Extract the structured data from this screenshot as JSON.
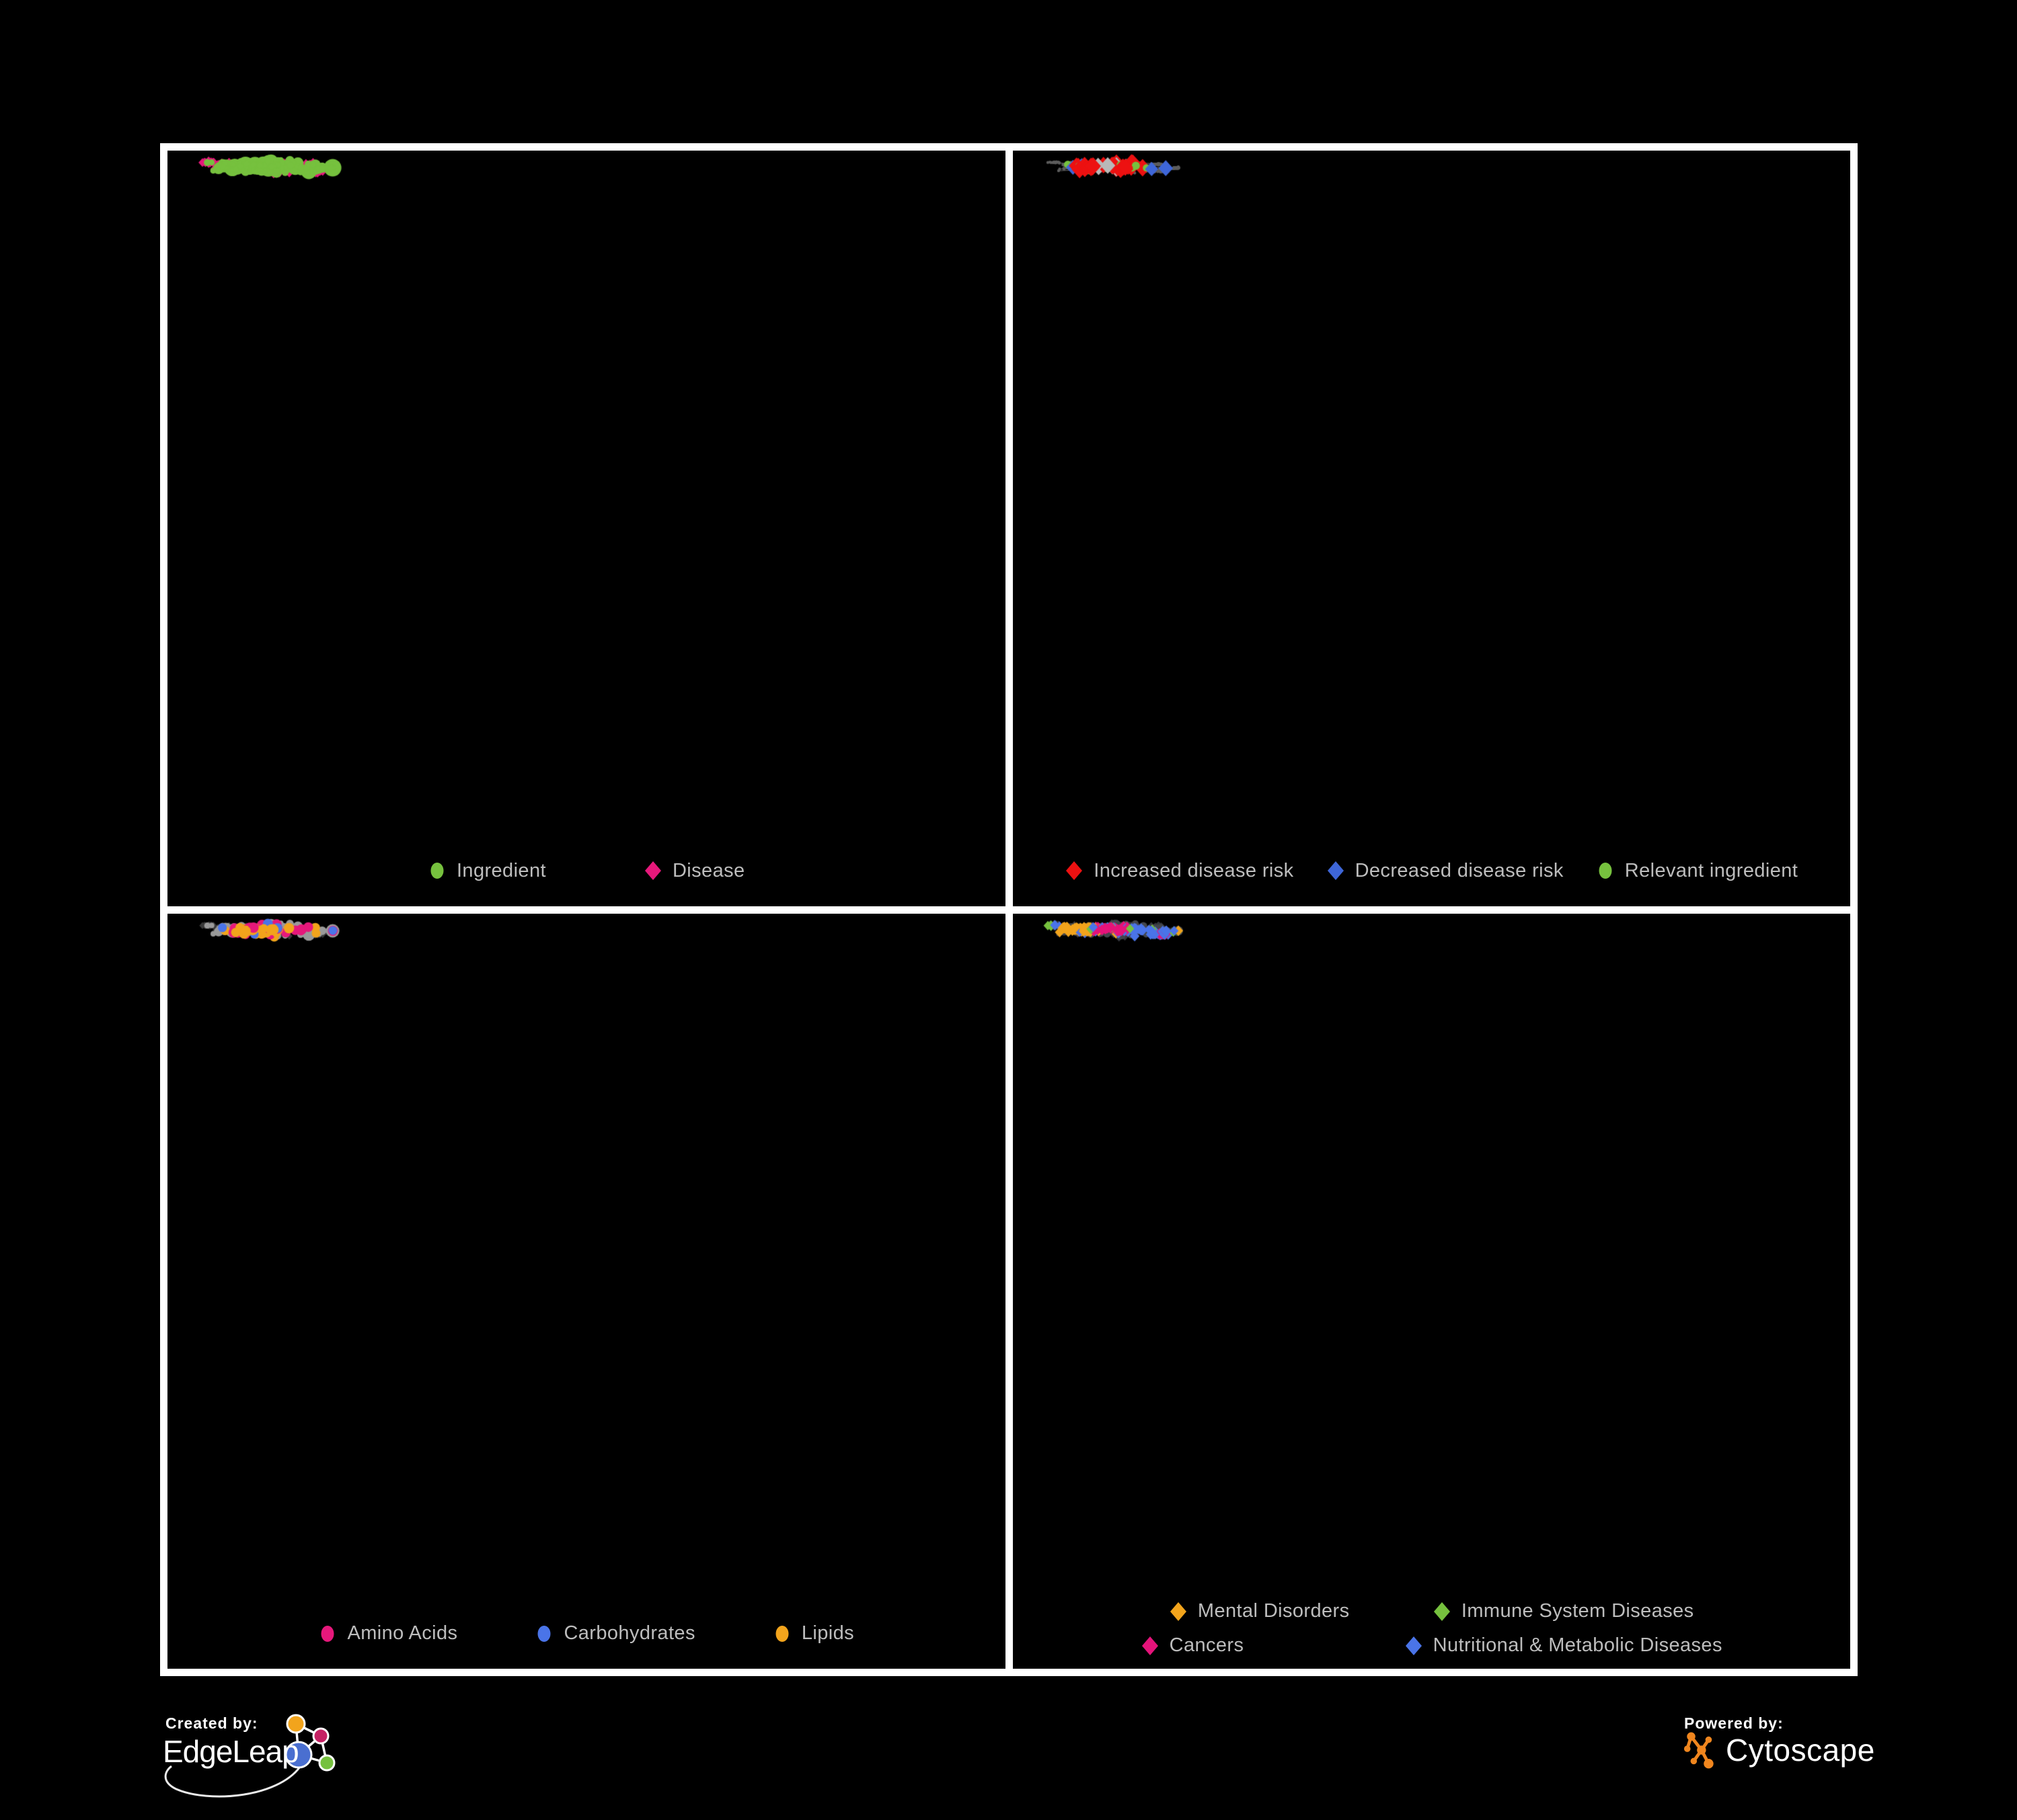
{
  "figure": {
    "background": "#000000",
    "panel_background": "#000000",
    "panel_border_color": "#ffffff",
    "legend_text_color": "#bdbdbd"
  },
  "panels": [
    {
      "id": "ingredient-disease",
      "legend_rows": [
        [
          {
            "shape": "circle",
            "color": "#76c13e",
            "label": "Ingredient"
          },
          {
            "shape": "diamond",
            "color": "#e6187b",
            "label": "Disease"
          }
        ]
      ],
      "style": {
        "seed": 11,
        "edge": {
          "color": "#6b6b6b",
          "width": 2.4,
          "opacity": 0.88
        },
        "ing": {
          "shape": "circle",
          "color": "#76c13e",
          "rBase": 3.6,
          "rDeg": 0.8,
          "rMax": 13
        },
        "dis": {
          "shape": "diamond",
          "color": "#e6187b",
          "sBase": 5.6,
          "sDeg": 0.3,
          "sMax": 8.5
        },
        "overlays": []
      }
    },
    {
      "id": "disease-risk",
      "legend_rows": [
        [
          {
            "shape": "diamond",
            "color": "#ed1111",
            "label": "Increased disease risk"
          },
          {
            "shape": "diamond",
            "color": "#3e66d8",
            "label": "Decreased disease risk"
          },
          {
            "shape": "circle",
            "color": "#76c13e",
            "label": "Relevant ingredient"
          }
        ]
      ],
      "style": {
        "seed": 22,
        "edge": {
          "color": "#7a7a7a",
          "width": 1.1,
          "opacity": 0.8
        },
        "ing": {
          "shape": "circle",
          "color": "#5d5d5d",
          "rBase": 2.1,
          "rDeg": 0.08,
          "rMax": 3.2
        },
        "dis": {
          "shape": "circle",
          "color": "#5d5d5d",
          "sBase": 2.1,
          "sDeg": 0.08,
          "sMax": 3.2
        },
        "overlays": [
          {
            "type": "dis",
            "count": 20,
            "region": [
              0.2,
              0.25,
              0.6,
              0.6
            ],
            "shape": "diamond",
            "color": "#ed1111",
            "size": 11
          },
          {
            "type": "dis",
            "count": 3,
            "region": [
              0.48,
              0.68,
              0.68,
              0.85
            ],
            "shape": "diamond",
            "color": "#ed1111",
            "size": 11
          },
          {
            "type": "dis",
            "count": 3,
            "region": [
              0.6,
              0.28,
              0.75,
              0.5
            ],
            "shape": "diamond",
            "color": "#ed1111",
            "size": 11
          },
          {
            "type": "dis",
            "count": 2,
            "region": [
              0.33,
              0.12,
              0.5,
              0.25
            ],
            "shape": "diamond",
            "color": "#ed1111",
            "size": 11
          },
          {
            "type": "dis",
            "count": 6,
            "region": [
              0.18,
              0.3,
              0.55,
              0.62
            ],
            "shape": "diamond",
            "color": "#b9b9b9",
            "size": 10
          },
          {
            "type": "dis",
            "count": 3,
            "region": [
              0.14,
              0.36,
              0.28,
              0.55
            ],
            "shape": "diamond",
            "color": "#3e66d8",
            "size": 10
          },
          {
            "type": "dis",
            "count": 2,
            "region": [
              0.78,
              0.3,
              0.93,
              0.45
            ],
            "shape": "diamond",
            "color": "#3e66d8",
            "size": 11
          },
          {
            "type": "ing",
            "count": 18,
            "region": [
              0.18,
              0.22,
              0.58,
              0.62
            ],
            "shape": "circle",
            "color": "#76c13e",
            "size": 5.5
          },
          {
            "type": "ing",
            "count": 4,
            "region": [
              0.58,
              0.3,
              0.78,
              0.58
            ],
            "shape": "circle",
            "color": "#76c13e",
            "size": 5.5
          },
          {
            "type": "ing",
            "count": 3,
            "region": [
              0.08,
              0.5,
              0.25,
              0.72
            ],
            "shape": "circle",
            "color": "#76c13e",
            "size": 5
          }
        ]
      }
    },
    {
      "id": "macronutrients",
      "legend_rows": [
        [
          {
            "shape": "circle",
            "color": "#e6187b",
            "label": "Amino Acids"
          },
          {
            "shape": "circle",
            "color": "#4a74e8",
            "label": "Carbohydrates"
          },
          {
            "shape": "circle",
            "color": "#f2a41c",
            "label": "Lipids"
          }
        ]
      ],
      "style": {
        "seed": 33,
        "edge": {
          "color": "#a9a9a9",
          "width": 1.0,
          "opacity": 0.38
        },
        "ing": {
          "shape": "circle",
          "color": "#9a9a9a",
          "rBase": 3.4,
          "rDeg": 0.6,
          "rMax": 10
        },
        "dis": {
          "shape": "diamond",
          "color": "#3a3a3a",
          "sBase": 4.6,
          "sDeg": 0.1,
          "sMax": 6
        },
        "overlays": [
          {
            "type": "ing",
            "count": 34,
            "region": [
              0.3,
              0.2,
              0.6,
              0.5
            ],
            "shape": "circle",
            "color": "#f2a41c",
            "size": 7
          },
          {
            "type": "ing",
            "count": 10,
            "region": [
              0.38,
              0.5,
              0.66,
              0.68
            ],
            "shape": "circle",
            "color": "#f2a41c",
            "size": 7
          },
          {
            "type": "ing",
            "count": 8,
            "region": null,
            "shape": "circle",
            "color": "#f2a41c",
            "size": 6.5
          },
          {
            "type": "ing",
            "count": 20,
            "region": null,
            "shape": "circle",
            "color": "#e6187b",
            "size": 7
          },
          {
            "type": "ing",
            "count": 8,
            "region": [
              0.35,
              0.16,
              0.56,
              0.4
            ],
            "shape": "circle",
            "color": "#4a74e8",
            "size": 7
          },
          {
            "type": "ing",
            "count": 5,
            "region": null,
            "shape": "circle",
            "color": "#4a74e8",
            "size": 6.5
          }
        ]
      }
    },
    {
      "id": "disease-categories",
      "legend_rows": [
        [
          {
            "shape": "diamond",
            "color": "#f2a41c",
            "label": "Mental Disorders"
          },
          {
            "shape": "diamond",
            "color": "#76c13e",
            "label": "Immune System Diseases"
          }
        ],
        [
          {
            "shape": "diamond",
            "color": "#e5137a",
            "label": "Cancers"
          },
          {
            "shape": "diamond",
            "color": "#4a74e8",
            "label": "Nutritional & Metabolic Diseases"
          }
        ]
      ],
      "style": {
        "seed": 44,
        "edge": {
          "color": "#9b9b9b",
          "width": 0.9,
          "opacity": 0.35
        },
        "ing": {
          "shape": "circle",
          "color": "#43464c",
          "rBase": 3.2,
          "rDeg": 0.45,
          "rMax": 7
        },
        "dis": {
          "shape": "diamond",
          "color": "#35383e",
          "sBase": 6,
          "sDeg": 0.15,
          "sMax": 8
        },
        "overlays": [
          {
            "type": "dis",
            "count": 75,
            "region": [
              0.05,
              0.35,
              0.33,
              0.66
            ],
            "shape": "diamond",
            "color": "#f2a41c",
            "size": 7
          },
          {
            "type": "dis",
            "count": 8,
            "region": [
              0.3,
              0.05,
              0.55,
              0.25
            ],
            "shape": "diamond",
            "color": "#f2a41c",
            "size": 6.5
          },
          {
            "type": "dis",
            "count": 6,
            "region": null,
            "shape": "diamond",
            "color": "#f2a41c",
            "size": 6.5
          },
          {
            "type": "dis",
            "count": 45,
            "region": [
              0.35,
              0.42,
              0.62,
              0.68
            ],
            "shape": "diamond",
            "color": "#e5137a",
            "size": 7
          },
          {
            "type": "dis",
            "count": 8,
            "region": [
              0.8,
              0.2,
              0.95,
              0.33
            ],
            "shape": "diamond",
            "color": "#e5137a",
            "size": 7
          },
          {
            "type": "dis",
            "count": 6,
            "region": null,
            "shape": "diamond",
            "color": "#e5137a",
            "size": 6.5
          },
          {
            "type": "dis",
            "count": 26,
            "region": [
              0.56,
              0.3,
              0.92,
              0.6
            ],
            "shape": "diamond",
            "color": "#4a74e8",
            "size": 7
          },
          {
            "type": "dis",
            "count": 16,
            "region": [
              0.45,
              0.02,
              0.9,
              0.28
            ],
            "shape": "diamond",
            "color": "#4a74e8",
            "size": 6.5
          },
          {
            "type": "dis",
            "count": 12,
            "region": [
              0.05,
              0.05,
              0.4,
              0.3
            ],
            "shape": "diamond",
            "color": "#4a74e8",
            "size": 6.5
          },
          {
            "type": "dis",
            "count": 12,
            "region": null,
            "shape": "diamond",
            "color": "#4a74e8",
            "size": 6.5
          },
          {
            "type": "dis",
            "count": 10,
            "region": null,
            "shape": "diamond",
            "color": "#76c13e",
            "size": 6.5
          }
        ]
      }
    }
  ],
  "network": {
    "seed": 7,
    "hubs": [
      [
        0.27,
        0.44,
        10
      ],
      [
        0.3,
        0.47,
        8
      ],
      [
        0.36,
        0.5,
        8
      ],
      [
        0.42,
        0.46,
        9
      ],
      [
        0.46,
        0.52,
        8
      ],
      [
        0.5,
        0.4,
        9
      ],
      [
        0.53,
        0.43,
        7
      ],
      [
        0.44,
        0.38,
        7
      ],
      [
        0.36,
        0.42,
        7
      ],
      [
        0.56,
        0.56,
        6
      ],
      [
        0.33,
        0.57,
        6
      ],
      [
        0.25,
        0.57,
        5
      ],
      [
        0.21,
        0.5,
        4
      ],
      [
        0.4,
        0.62,
        5
      ],
      [
        0.3,
        0.68,
        5
      ],
      [
        0.52,
        0.8,
        5
      ],
      [
        0.63,
        0.3,
        4
      ],
      [
        0.45,
        0.22,
        4
      ],
      [
        0.33,
        0.18,
        4
      ],
      [
        0.56,
        0.13,
        3
      ],
      [
        0.7,
        0.45,
        4
      ],
      [
        0.72,
        0.72,
        4
      ],
      [
        0.84,
        0.3,
        4
      ],
      [
        0.74,
        0.18,
        3
      ],
      [
        0.9,
        0.42,
        3
      ],
      [
        0.16,
        0.68,
        3
      ],
      [
        0.13,
        0.36,
        3
      ],
      [
        0.22,
        0.26,
        3
      ],
      [
        0.62,
        0.62,
        4
      ],
      [
        0.85,
        0.62,
        3
      ],
      [
        0.66,
        0.88,
        3
      ],
      [
        0.09,
        0.22,
        2
      ]
    ],
    "hubExtra": 18,
    "grow": 320,
    "step": 0.075,
    "decay": 0.8,
    "fans": 42,
    "cross": 30,
    "ing_prob": {
      "d1": 0.5,
      "d2": 0.38,
      "deep": 0.22,
      "leaf": 0.15
    }
  },
  "footer": {
    "created_by_label": "Created by:",
    "edgeleap_name": "EdgeLeap",
    "powered_by_label": "Powered by:",
    "cytoscape_name": "Cytoscape",
    "edgeleap_colors": {
      "orange": "#f2a41c",
      "magenta": "#c52163",
      "blue": "#4a6fd0",
      "green": "#76c13e",
      "stroke": "#ffffff"
    },
    "cytoscape_color": "#f0861e"
  }
}
